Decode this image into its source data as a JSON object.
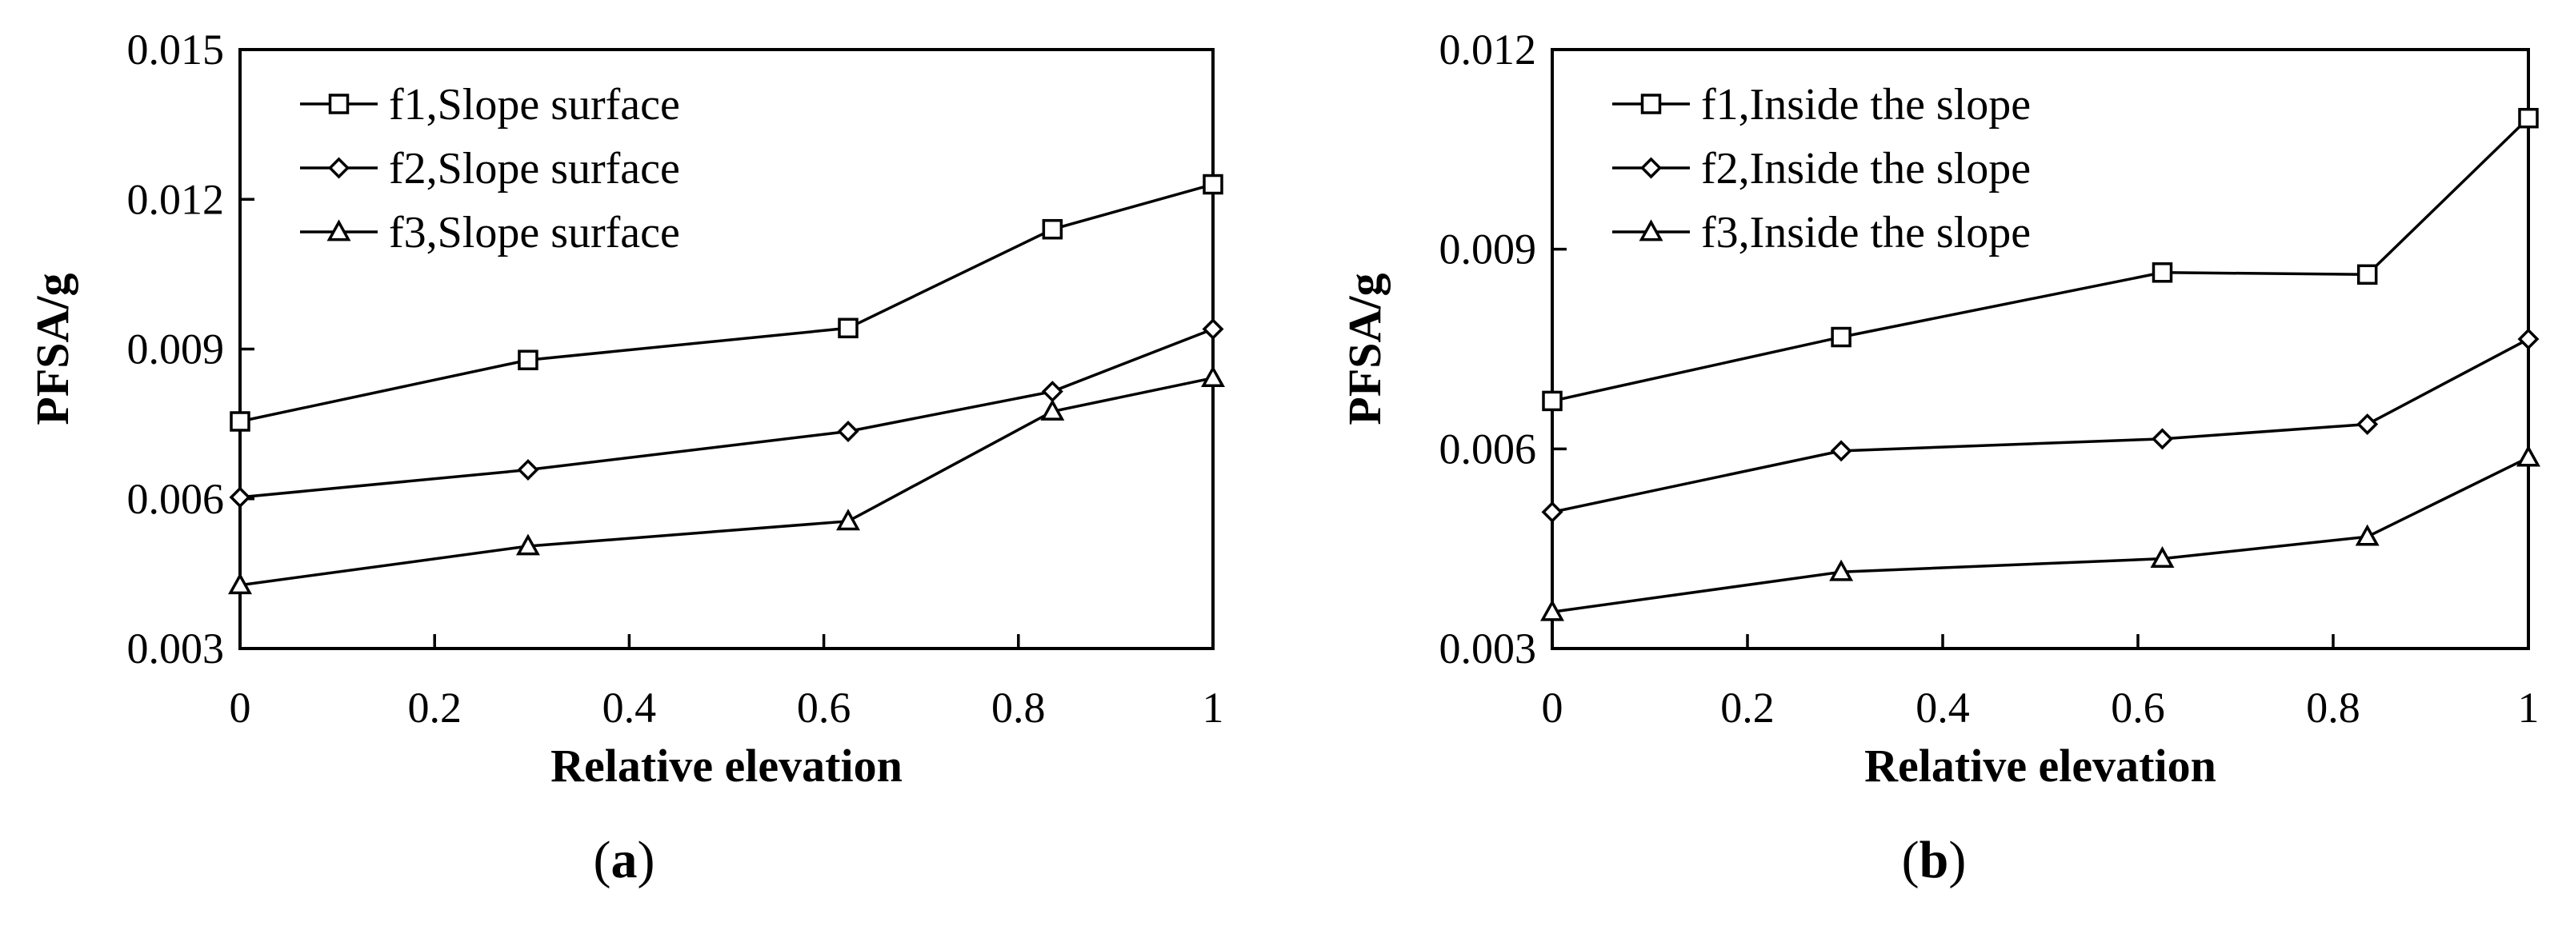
{
  "chart_data": [
    {
      "type": "line",
      "panel_label": "a",
      "xlabel": "Relative elevation",
      "ylabel": "PFSA/g",
      "xlim": [
        0,
        1
      ],
      "ylim": [
        0.003,
        0.015
      ],
      "xticks": [
        "0",
        "0.2",
        "0.4",
        "0.6",
        "0.8",
        "1"
      ],
      "yticks": [
        "0.003",
        "0.006",
        "0.009",
        "0.012",
        "0.015"
      ],
      "legend_position": "top-left",
      "grid": false,
      "x": [
        0,
        0.296,
        0.625,
        0.835,
        1
      ],
      "series": [
        {
          "name": "f1,Slope surface",
          "marker": "square",
          "values": [
            0.00755,
            0.00878,
            0.00942,
            0.0114,
            0.0123
          ]
        },
        {
          "name": "f2,Slope surface",
          "marker": "diamond",
          "values": [
            0.00603,
            0.00658,
            0.00735,
            0.00815,
            0.0094
          ]
        },
        {
          "name": "f3,Slope surface",
          "marker": "triangle",
          "values": [
            0.00427,
            0.00505,
            0.00555,
            0.00775,
            0.00842
          ]
        }
      ]
    },
    {
      "type": "line",
      "panel_label": "b",
      "xlabel": "Relative elevation",
      "ylabel": "PFSA/g",
      "xlim": [
        0,
        1
      ],
      "ylim": [
        0.003,
        0.012
      ],
      "xticks": [
        "0",
        "0.2",
        "0.4",
        "0.6",
        "0.8",
        "1"
      ],
      "yticks": [
        "0.003",
        "0.006",
        "0.009",
        "0.012"
      ],
      "legend_position": "top-left",
      "grid": false,
      "x": [
        0,
        0.296,
        0.625,
        0.835,
        1
      ],
      "series": [
        {
          "name": "f1,Inside the slope",
          "marker": "square",
          "values": [
            0.00672,
            0.00768,
            0.00865,
            0.00862,
            0.01097
          ]
        },
        {
          "name": "f2,Inside the slope",
          "marker": "diamond",
          "values": [
            0.00505,
            0.00597,
            0.00615,
            0.00637,
            0.00765
          ]
        },
        {
          "name": "f3,Inside the slope",
          "marker": "triangle",
          "values": [
            0.00355,
            0.00415,
            0.00435,
            0.00468,
            0.00587
          ]
        }
      ]
    }
  ]
}
